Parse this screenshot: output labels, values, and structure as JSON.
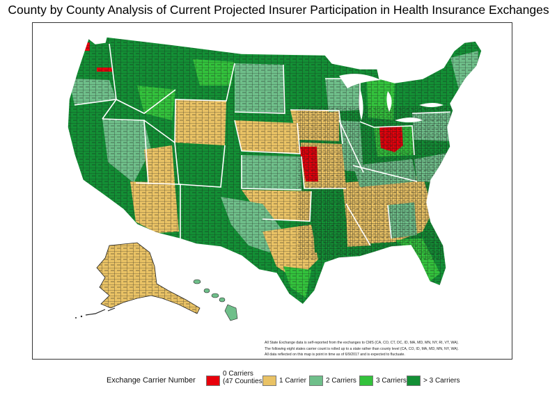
{
  "title": "County by County Analysis of Current Projected Insurer Participation in Health Insurance Exchanges",
  "colors": {
    "zero": "#e8000b",
    "one": "#e9c265",
    "two": "#6fbf8a",
    "three": "#33c23c",
    "more": "#138f35",
    "county_line": "#1a1a1a"
  },
  "notes": [
    "All State Exchange data is self-reported from the exchanges to CMS (CA, CO, CT, DC, ID, MA, MD, MN, NY, RI, VT, WA).",
    "The following eight states carrier count is rolled up to a state rather than county level (CA, CO, ID, MA, MD, MN, NY, WA).",
    "All data reflected on this map is point in time as of 6/9/2017 and is expected to fluctuate."
  ],
  "legend": {
    "title": "Exchange Carrier Number",
    "items": [
      {
        "key": "zero",
        "label_line1": "0 Carriers",
        "label_line2": "(47 Counties)"
      },
      {
        "key": "one",
        "label": "1 Carrier"
      },
      {
        "key": "two",
        "label": "2 Carriers"
      },
      {
        "key": "three",
        "label": "3 Carriers"
      },
      {
        "key": "more",
        "label": "> 3 Carriers"
      }
    ]
  }
}
